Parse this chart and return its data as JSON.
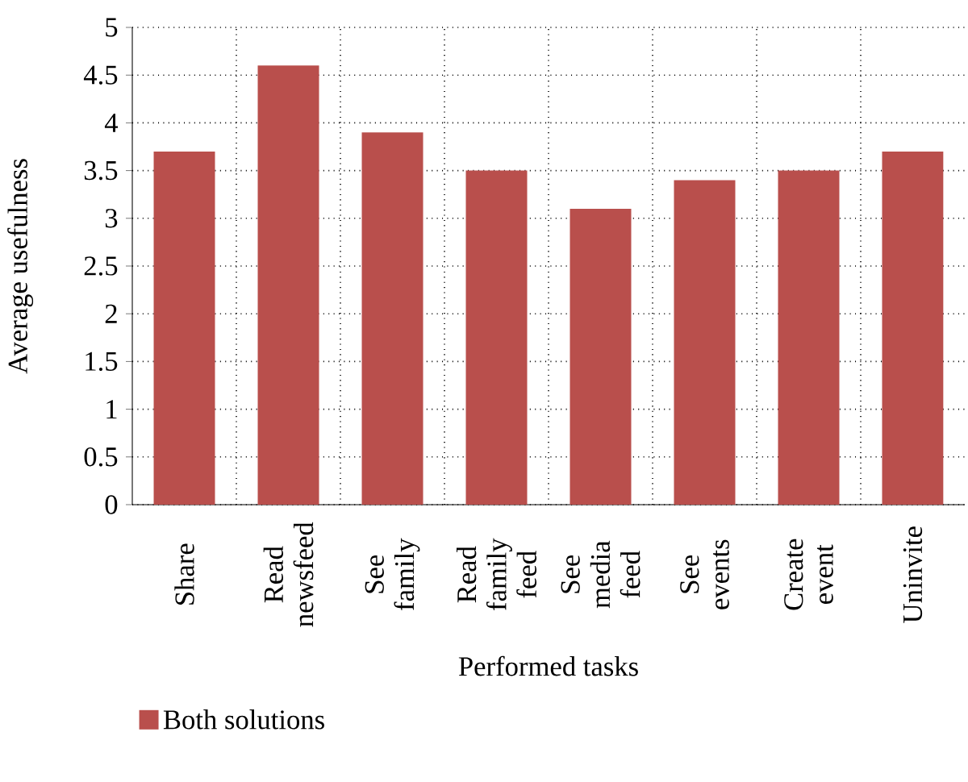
{
  "chart_data": {
    "type": "bar",
    "xlabel": "Performed tasks",
    "ylabel": "Average usefulness",
    "categories": [
      "Share",
      "Read newsfeed",
      "See family",
      "Read family feed",
      "See media feed",
      "See events",
      "Create event",
      "Uninvite"
    ],
    "series": [
      {
        "name": "Both solutions",
        "color": "#b94f4c",
        "values": [
          3.7,
          4.6,
          3.9,
          3.5,
          3.1,
          3.4,
          3.5,
          3.7
        ]
      }
    ],
    "ylim": [
      0,
      5
    ],
    "yticks": [
      0,
      0.5,
      1,
      1.5,
      2,
      2.5,
      3,
      3.5,
      4,
      4.5,
      5
    ],
    "grid": true,
    "legend": "bottom left"
  }
}
